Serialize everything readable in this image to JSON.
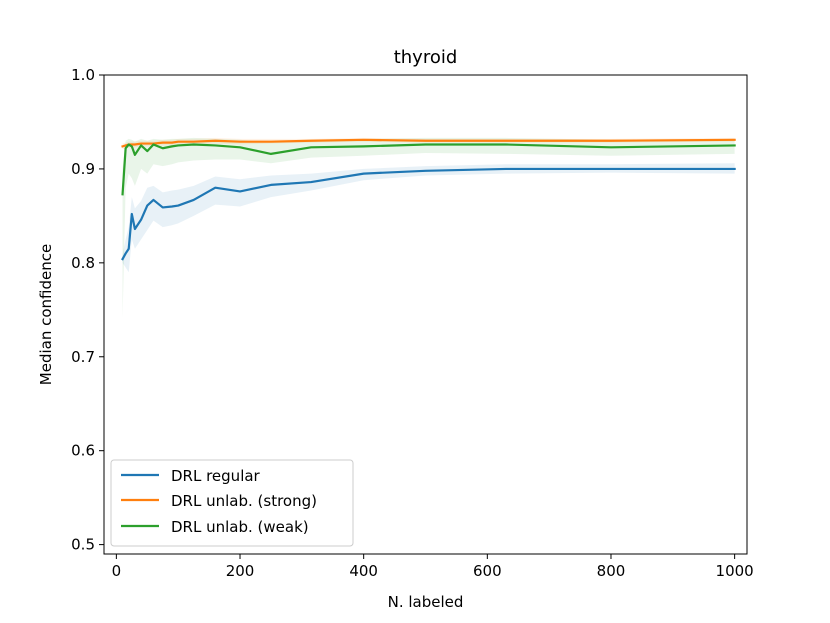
{
  "chart_data": {
    "type": "line",
    "title": "thyroid",
    "xlabel": "N. labeled",
    "ylabel": "Median confidence",
    "xlim": [
      -20,
      1020
    ],
    "ylim": [
      0.49,
      1.0
    ],
    "xticks": [
      0,
      200,
      400,
      600,
      800,
      1000
    ],
    "xtick_labels": [
      "0",
      "200",
      "400",
      "600",
      "800",
      "1000"
    ],
    "yticks": [
      0.5,
      0.6,
      0.7,
      0.8,
      0.9,
      1.0
    ],
    "ytick_labels": [
      "0.5",
      "0.6",
      "0.7",
      "0.8",
      "0.9",
      "1.0"
    ],
    "grid": false,
    "legend_position": "lower-left",
    "series": [
      {
        "name": "DRL regular",
        "color": "#1f77b4",
        "x": [
          10,
          15,
          20,
          25,
          30,
          40,
          50,
          60,
          75,
          90,
          100,
          125,
          160,
          200,
          250,
          315,
          400,
          500,
          630,
          800,
          1000
        ],
        "y": [
          0.804,
          0.81,
          0.815,
          0.852,
          0.836,
          0.846,
          0.861,
          0.867,
          0.859,
          0.86,
          0.861,
          0.867,
          0.88,
          0.876,
          0.883,
          0.886,
          0.895,
          0.898,
          0.9,
          0.9,
          0.9
        ],
        "band_lower": [
          0.8,
          0.795,
          0.79,
          0.825,
          0.815,
          0.825,
          0.835,
          0.845,
          0.838,
          0.84,
          0.842,
          0.85,
          0.862,
          0.86,
          0.87,
          0.877,
          0.888,
          0.893,
          0.895,
          0.896,
          0.895
        ],
        "band_upper": [
          0.808,
          0.825,
          0.838,
          0.87,
          0.858,
          0.866,
          0.88,
          0.882,
          0.875,
          0.877,
          0.878,
          0.882,
          0.892,
          0.889,
          0.893,
          0.895,
          0.9,
          0.903,
          0.905,
          0.905,
          0.906
        ]
      },
      {
        "name": "DRL unlab. (strong)",
        "color": "#ff7f0e",
        "x": [
          10,
          15,
          20,
          25,
          30,
          40,
          50,
          60,
          75,
          90,
          100,
          125,
          160,
          200,
          250,
          315,
          400,
          500,
          630,
          800,
          1000
        ],
        "y": [
          0.924,
          0.925,
          0.926,
          0.926,
          0.926,
          0.927,
          0.927,
          0.927,
          0.928,
          0.928,
          0.929,
          0.929,
          0.93,
          0.929,
          0.929,
          0.93,
          0.931,
          0.93,
          0.93,
          0.93,
          0.931
        ],
        "band_lower": [
          0.921,
          0.922,
          0.923,
          0.923,
          0.923,
          0.924,
          0.924,
          0.924,
          0.925,
          0.925,
          0.926,
          0.926,
          0.927,
          0.926,
          0.927,
          0.928,
          0.929,
          0.928,
          0.928,
          0.928,
          0.929
        ],
        "band_upper": [
          0.927,
          0.928,
          0.929,
          0.929,
          0.929,
          0.93,
          0.93,
          0.93,
          0.931,
          0.931,
          0.932,
          0.932,
          0.933,
          0.932,
          0.932,
          0.932,
          0.933,
          0.932,
          0.932,
          0.932,
          0.933
        ]
      },
      {
        "name": "DRL unlab. (weak)",
        "color": "#2ca02c",
        "x": [
          10,
          15,
          20,
          25,
          30,
          40,
          50,
          60,
          75,
          90,
          100,
          125,
          160,
          200,
          250,
          315,
          400,
          500,
          630,
          800,
          1000
        ],
        "y": [
          0.873,
          0.922,
          0.926,
          0.924,
          0.915,
          0.925,
          0.919,
          0.926,
          0.922,
          0.924,
          0.925,
          0.926,
          0.925,
          0.923,
          0.916,
          0.923,
          0.924,
          0.926,
          0.926,
          0.923,
          0.925
        ],
        "band_lower": [
          0.741,
          0.88,
          0.895,
          0.89,
          0.882,
          0.9,
          0.895,
          0.905,
          0.903,
          0.905,
          0.907,
          0.909,
          0.91,
          0.91,
          0.906,
          0.912,
          0.914,
          0.917,
          0.916,
          0.914,
          0.916
        ],
        "band_upper": [
          0.9,
          0.93,
          0.932,
          0.931,
          0.929,
          0.932,
          0.93,
          0.932,
          0.931,
          0.932,
          0.932,
          0.933,
          0.932,
          0.931,
          0.928,
          0.931,
          0.932,
          0.933,
          0.933,
          0.931,
          0.932
        ]
      }
    ]
  }
}
